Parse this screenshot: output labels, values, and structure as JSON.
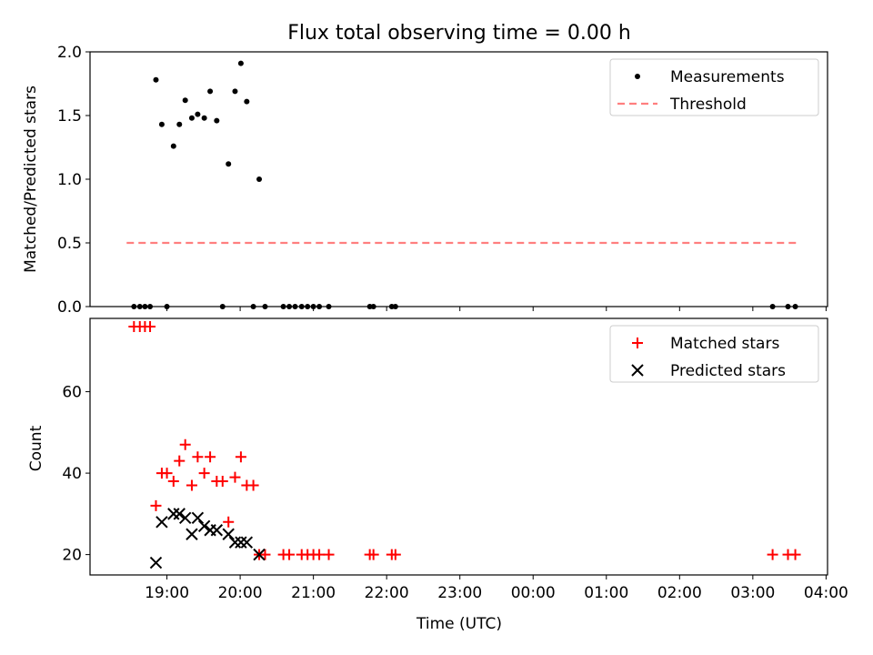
{
  "chart_data": {
    "title": "Flux total observing time = 0.00 h",
    "xlabel": "Time (UTC)",
    "x_tick_labels": [
      "19:00",
      "20:00",
      "21:00",
      "22:00",
      "23:00",
      "00:00",
      "01:00",
      "02:00",
      "03:00",
      "04:00"
    ],
    "x_range_hours": [
      17.95,
      28.02
    ],
    "panels": [
      {
        "type": "scatter",
        "ylabel": "Matched/Predicted stars",
        "ylim": [
          0,
          2.0
        ],
        "y_ticks": [
          "0.0",
          "0.5",
          "1.0",
          "1.5",
          "2.0"
        ],
        "legend_position": "top-right",
        "series": [
          {
            "name": "Measurements",
            "marker": "dot",
            "color": "#000000",
            "x": [
              18.55,
              18.63,
              18.7,
              18.77,
              18.85,
              18.93,
              19.0,
              19.09,
              19.17,
              19.25,
              19.34,
              19.42,
              19.51,
              19.59,
              19.68,
              19.76,
              19.84,
              19.93,
              20.01,
              20.09,
              20.18,
              20.26,
              20.34,
              20.59,
              20.67,
              20.75,
              20.84,
              20.92,
              21.0,
              21.08,
              21.21,
              21.77,
              21.82,
              22.07,
              22.12,
              27.27,
              27.48,
              27.58
            ],
            "y": [
              0,
              0,
              0,
              0,
              1.78,
              1.43,
              0,
              1.26,
              1.43,
              1.62,
              1.48,
              1.51,
              1.48,
              1.69,
              1.46,
              0,
              1.12,
              1.69,
              1.91,
              1.61,
              0,
              1.0,
              0,
              0,
              0,
              0,
              0,
              0,
              0,
              0,
              0,
              0,
              0,
              0,
              0,
              0,
              0,
              0
            ]
          },
          {
            "name": "Threshold",
            "marker": "dashed-line",
            "color": "#ff7f7f",
            "x": [
              18.45,
              27.62
            ],
            "y": [
              0.5,
              0.5
            ]
          }
        ]
      },
      {
        "type": "scatter",
        "ylabel": "Count",
        "ylim": [
          15,
          78
        ],
        "y_ticks": [
          "20",
          "40",
          "60"
        ],
        "legend_position": "top-right",
        "series": [
          {
            "name": "Matched stars",
            "marker": "plus",
            "color": "#ff0000",
            "x": [
              18.55,
              18.63,
              18.7,
              18.77,
              18.85,
              18.93,
              19.0,
              19.09,
              19.17,
              19.25,
              19.34,
              19.42,
              19.51,
              19.59,
              19.68,
              19.76,
              19.84,
              19.93,
              20.01,
              20.09,
              20.18,
              20.26,
              20.34,
              20.59,
              20.67,
              20.84,
              20.92,
              21.0,
              21.08,
              21.21,
              21.77,
              21.82,
              22.07,
              22.12,
              27.27,
              27.48,
              27.58
            ],
            "y": [
              76,
              76,
              76,
              76,
              32,
              40,
              40,
              38,
              43,
              47,
              37,
              44,
              40,
              44,
              38,
              38,
              28,
              39,
              44,
              37,
              37,
              20,
              20,
              20,
              20,
              20,
              20,
              20,
              20,
              20,
              20,
              20,
              20,
              20,
              20,
              20,
              20
            ]
          },
          {
            "name": "Predicted stars",
            "marker": "x",
            "color": "#000000",
            "x": [
              18.85,
              18.93,
              19.09,
              19.17,
              19.25,
              19.34,
              19.42,
              19.51,
              19.59,
              19.68,
              19.84,
              19.93,
              20.01,
              20.09,
              20.26
            ],
            "y": [
              18,
              28,
              30,
              30,
              29,
              25,
              29,
              27,
              26,
              26,
              25,
              23,
              23,
              23,
              20
            ]
          }
        ]
      }
    ]
  }
}
